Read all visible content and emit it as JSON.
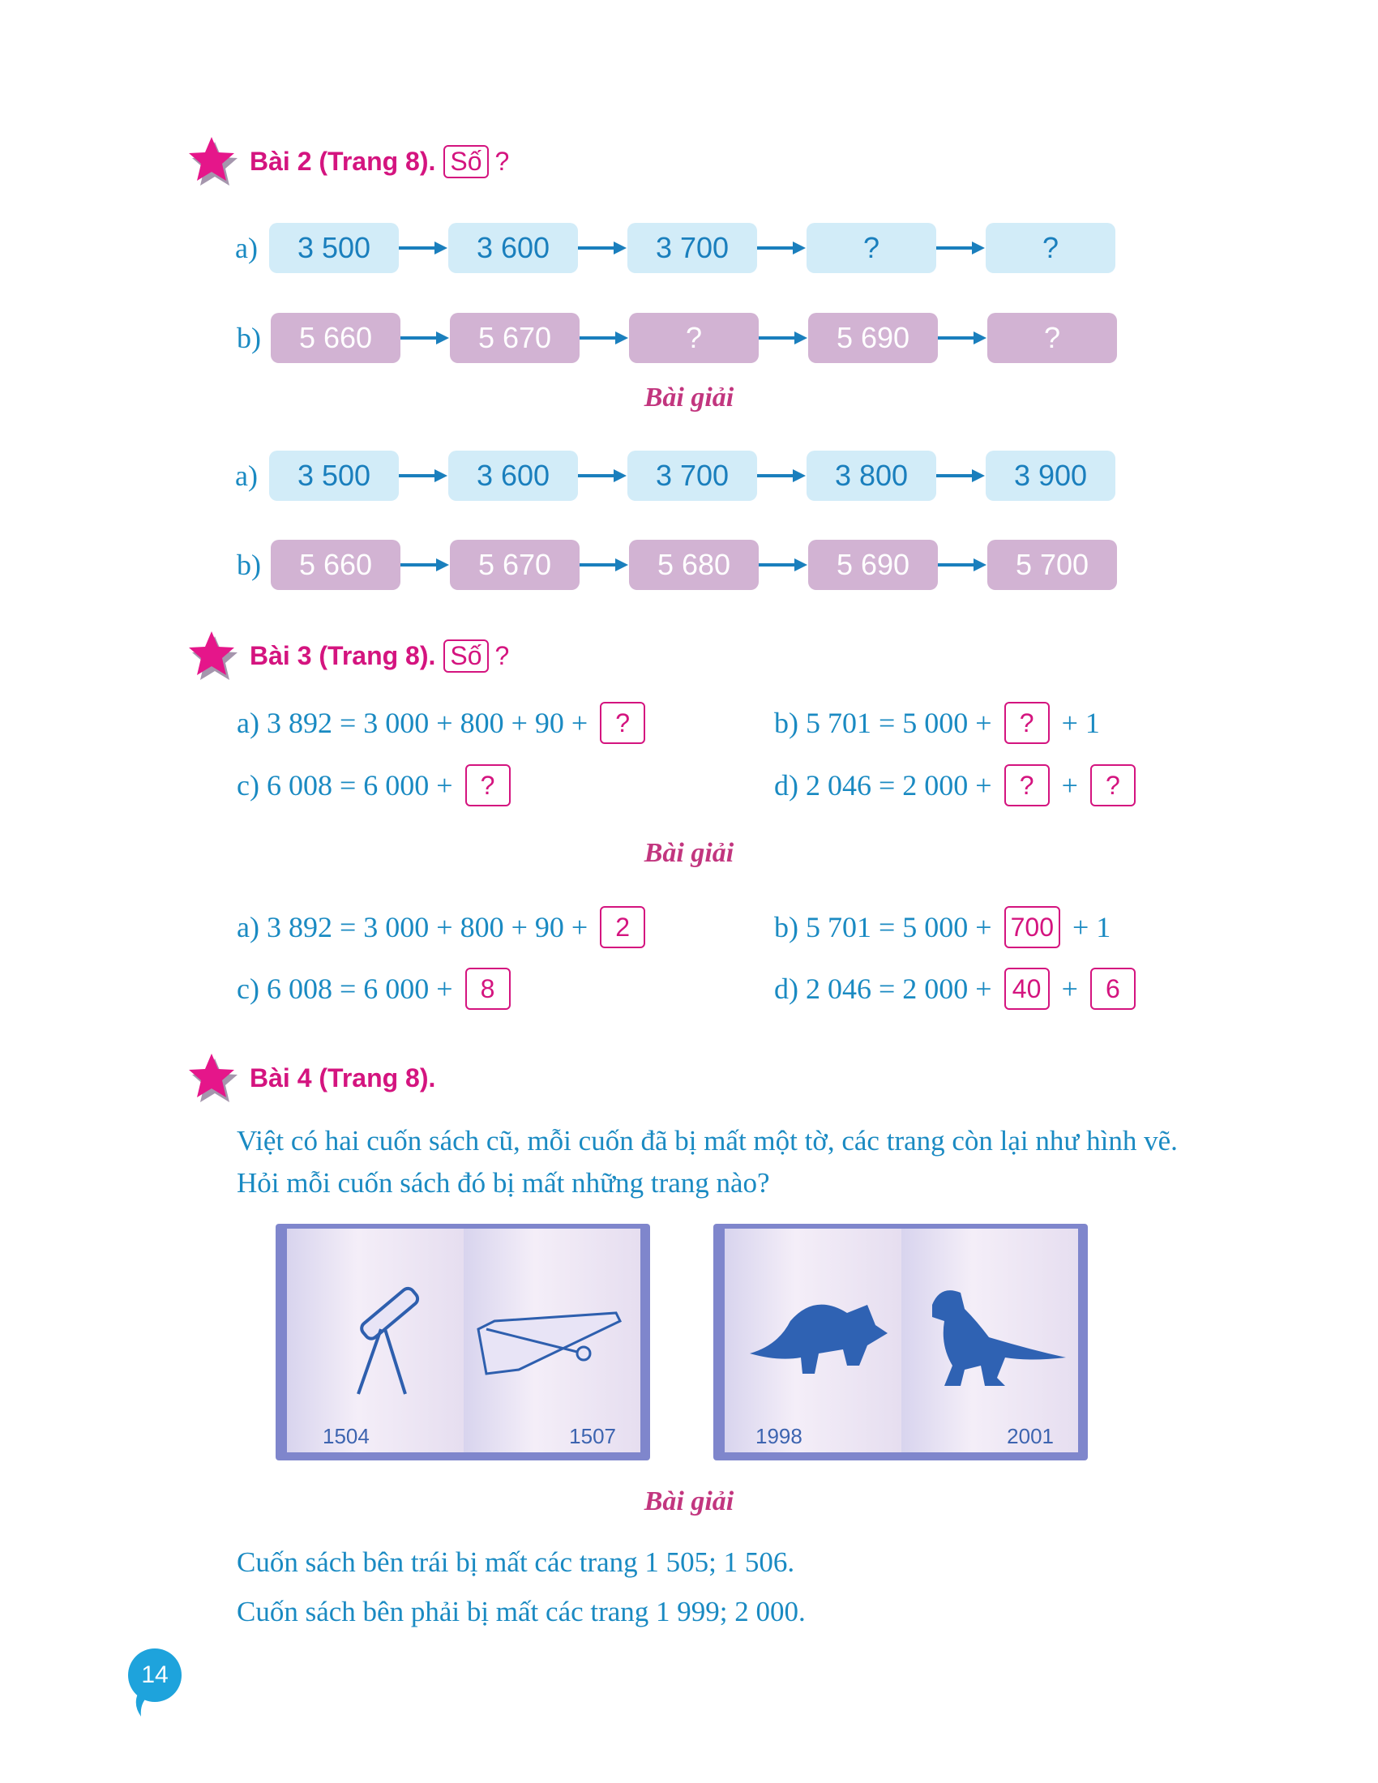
{
  "bai2": {
    "title": "Bài 2 (Trang 8).",
    "tag": "Số",
    "question_mark": "?",
    "question": {
      "a": {
        "label": "a)",
        "values": [
          "3 500",
          "3 600",
          "3 700",
          "?",
          "?"
        ]
      },
      "b": {
        "label": "b)",
        "values": [
          "5 660",
          "5 670",
          "?",
          "5 690",
          "?"
        ]
      }
    },
    "solution_title": "Bài giải",
    "answer": {
      "a": {
        "label": "a)",
        "values": [
          "3 500",
          "3 600",
          "3 700",
          "3 800",
          "3 900"
        ]
      },
      "b": {
        "label": "b)",
        "values": [
          "5 660",
          "5 670",
          "5 680",
          "5 690",
          "5 700"
        ]
      }
    }
  },
  "bai3": {
    "title": "Bài 3 (Trang 8).",
    "tag": "Số",
    "question_mark": "?",
    "question": {
      "a": {
        "pre": "a) 3 892 = 3 000 + 800 + 90 + ",
        "box1": "?"
      },
      "b": {
        "pre": "b) 5 701 = 5 000 + ",
        "box1": "?",
        "post": " + 1"
      },
      "c": {
        "pre": "c) 6 008 = 6 000 + ",
        "box1": "?"
      },
      "d": {
        "pre": "d) 2 046 = 2 000 + ",
        "box1": "?",
        "mid": " + ",
        "box2": "?"
      }
    },
    "solution_title": "Bài giải",
    "answer": {
      "a": {
        "pre": "a) 3 892 = 3 000 + 800 + 90 + ",
        "box1": "2"
      },
      "b": {
        "pre": "b) 5 701 = 5 000 + ",
        "box1": "700",
        "post": " + 1"
      },
      "c": {
        "pre": "c) 6 008 = 6 000 + ",
        "box1": "8"
      },
      "d": {
        "pre": "d) 2 046 = 2 000 + ",
        "box1": "40",
        "mid": " + ",
        "box2": "6"
      }
    }
  },
  "bai4": {
    "title": "Bài 4 (Trang 8).",
    "problem": "Việt có hai cuốn sách cũ, mỗi cuốn đã bị mất một tờ, các trang còn lại như hình vẽ. Hỏi mỗi cuốn sách đó bị mất những trang nào?",
    "books": [
      {
        "left_page": "1504",
        "right_page": "1507",
        "left_icon": "telescope",
        "right_icon": "airplane"
      },
      {
        "left_page": "1998",
        "right_page": "2001",
        "left_icon": "triceratops",
        "right_icon": "t-rex"
      }
    ],
    "solution_title": "Bài giải",
    "answers": [
      "Cuốn sách bên trái bị mất các trang 1 505; 1 506.",
      "Cuốn sách bên phải bị mất các trang 1 999; 2 000."
    ]
  },
  "page_number": "14",
  "colors": {
    "accent": "#d4147f",
    "text": "#1a8ac2",
    "blue_box": "#d2ecf8",
    "purple_box": "#d2b3d3"
  }
}
